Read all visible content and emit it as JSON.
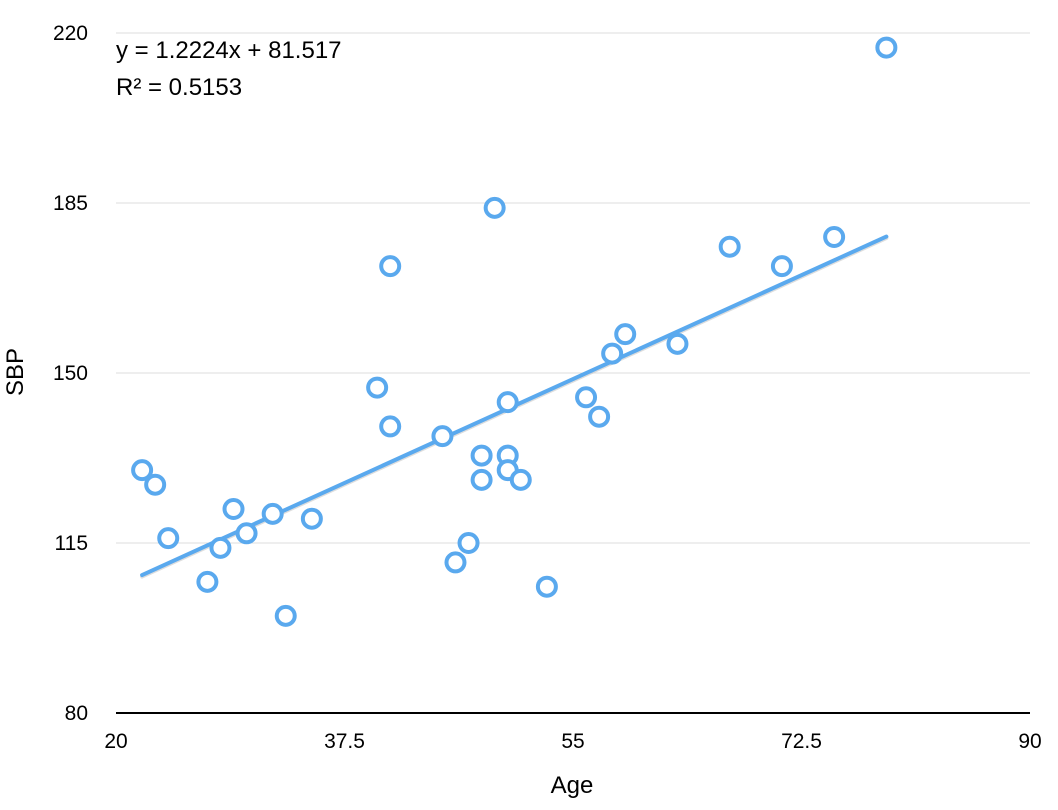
{
  "chart_data": {
    "type": "scatter",
    "title": "",
    "xlabel": "Age",
    "ylabel": "SBP",
    "xlim": [
      20,
      90
    ],
    "ylim": [
      80,
      220
    ],
    "xticks": [
      "20",
      "37.5",
      "55",
      "72.5",
      "90"
    ],
    "yticks": [
      "80",
      "115",
      "150",
      "185",
      "220"
    ],
    "grid": "horizontal",
    "legend": "none",
    "colors": {
      "points": "#5aa9ee",
      "trendline": "#5aa9ee",
      "grid": "#dddddd",
      "axis": "#000000"
    },
    "series": [
      {
        "x": [
          22,
          23,
          24,
          27,
          28,
          29,
          30,
          32,
          33,
          35,
          40,
          41,
          41,
          45,
          46,
          47,
          48,
          48,
          49,
          50,
          50,
          50,
          51,
          53,
          56,
          57,
          58,
          59,
          63,
          67,
          71,
          75,
          79
        ],
        "y": [
          130,
          127,
          116,
          107,
          114,
          122,
          117,
          121,
          100,
          120,
          147,
          172,
          139,
          137,
          111,
          115,
          133,
          128,
          184,
          133,
          130,
          144,
          128,
          106,
          145,
          141,
          154,
          158,
          156,
          176,
          172,
          178,
          217
        ]
      }
    ],
    "trendline": {
      "type": "linear",
      "slope": 1.2224,
      "intercept": 81.517,
      "x_range": [
        22,
        79
      ],
      "equation": "y = 1.2224x + 81.517",
      "r_squared": "R² = 0.5153"
    }
  }
}
